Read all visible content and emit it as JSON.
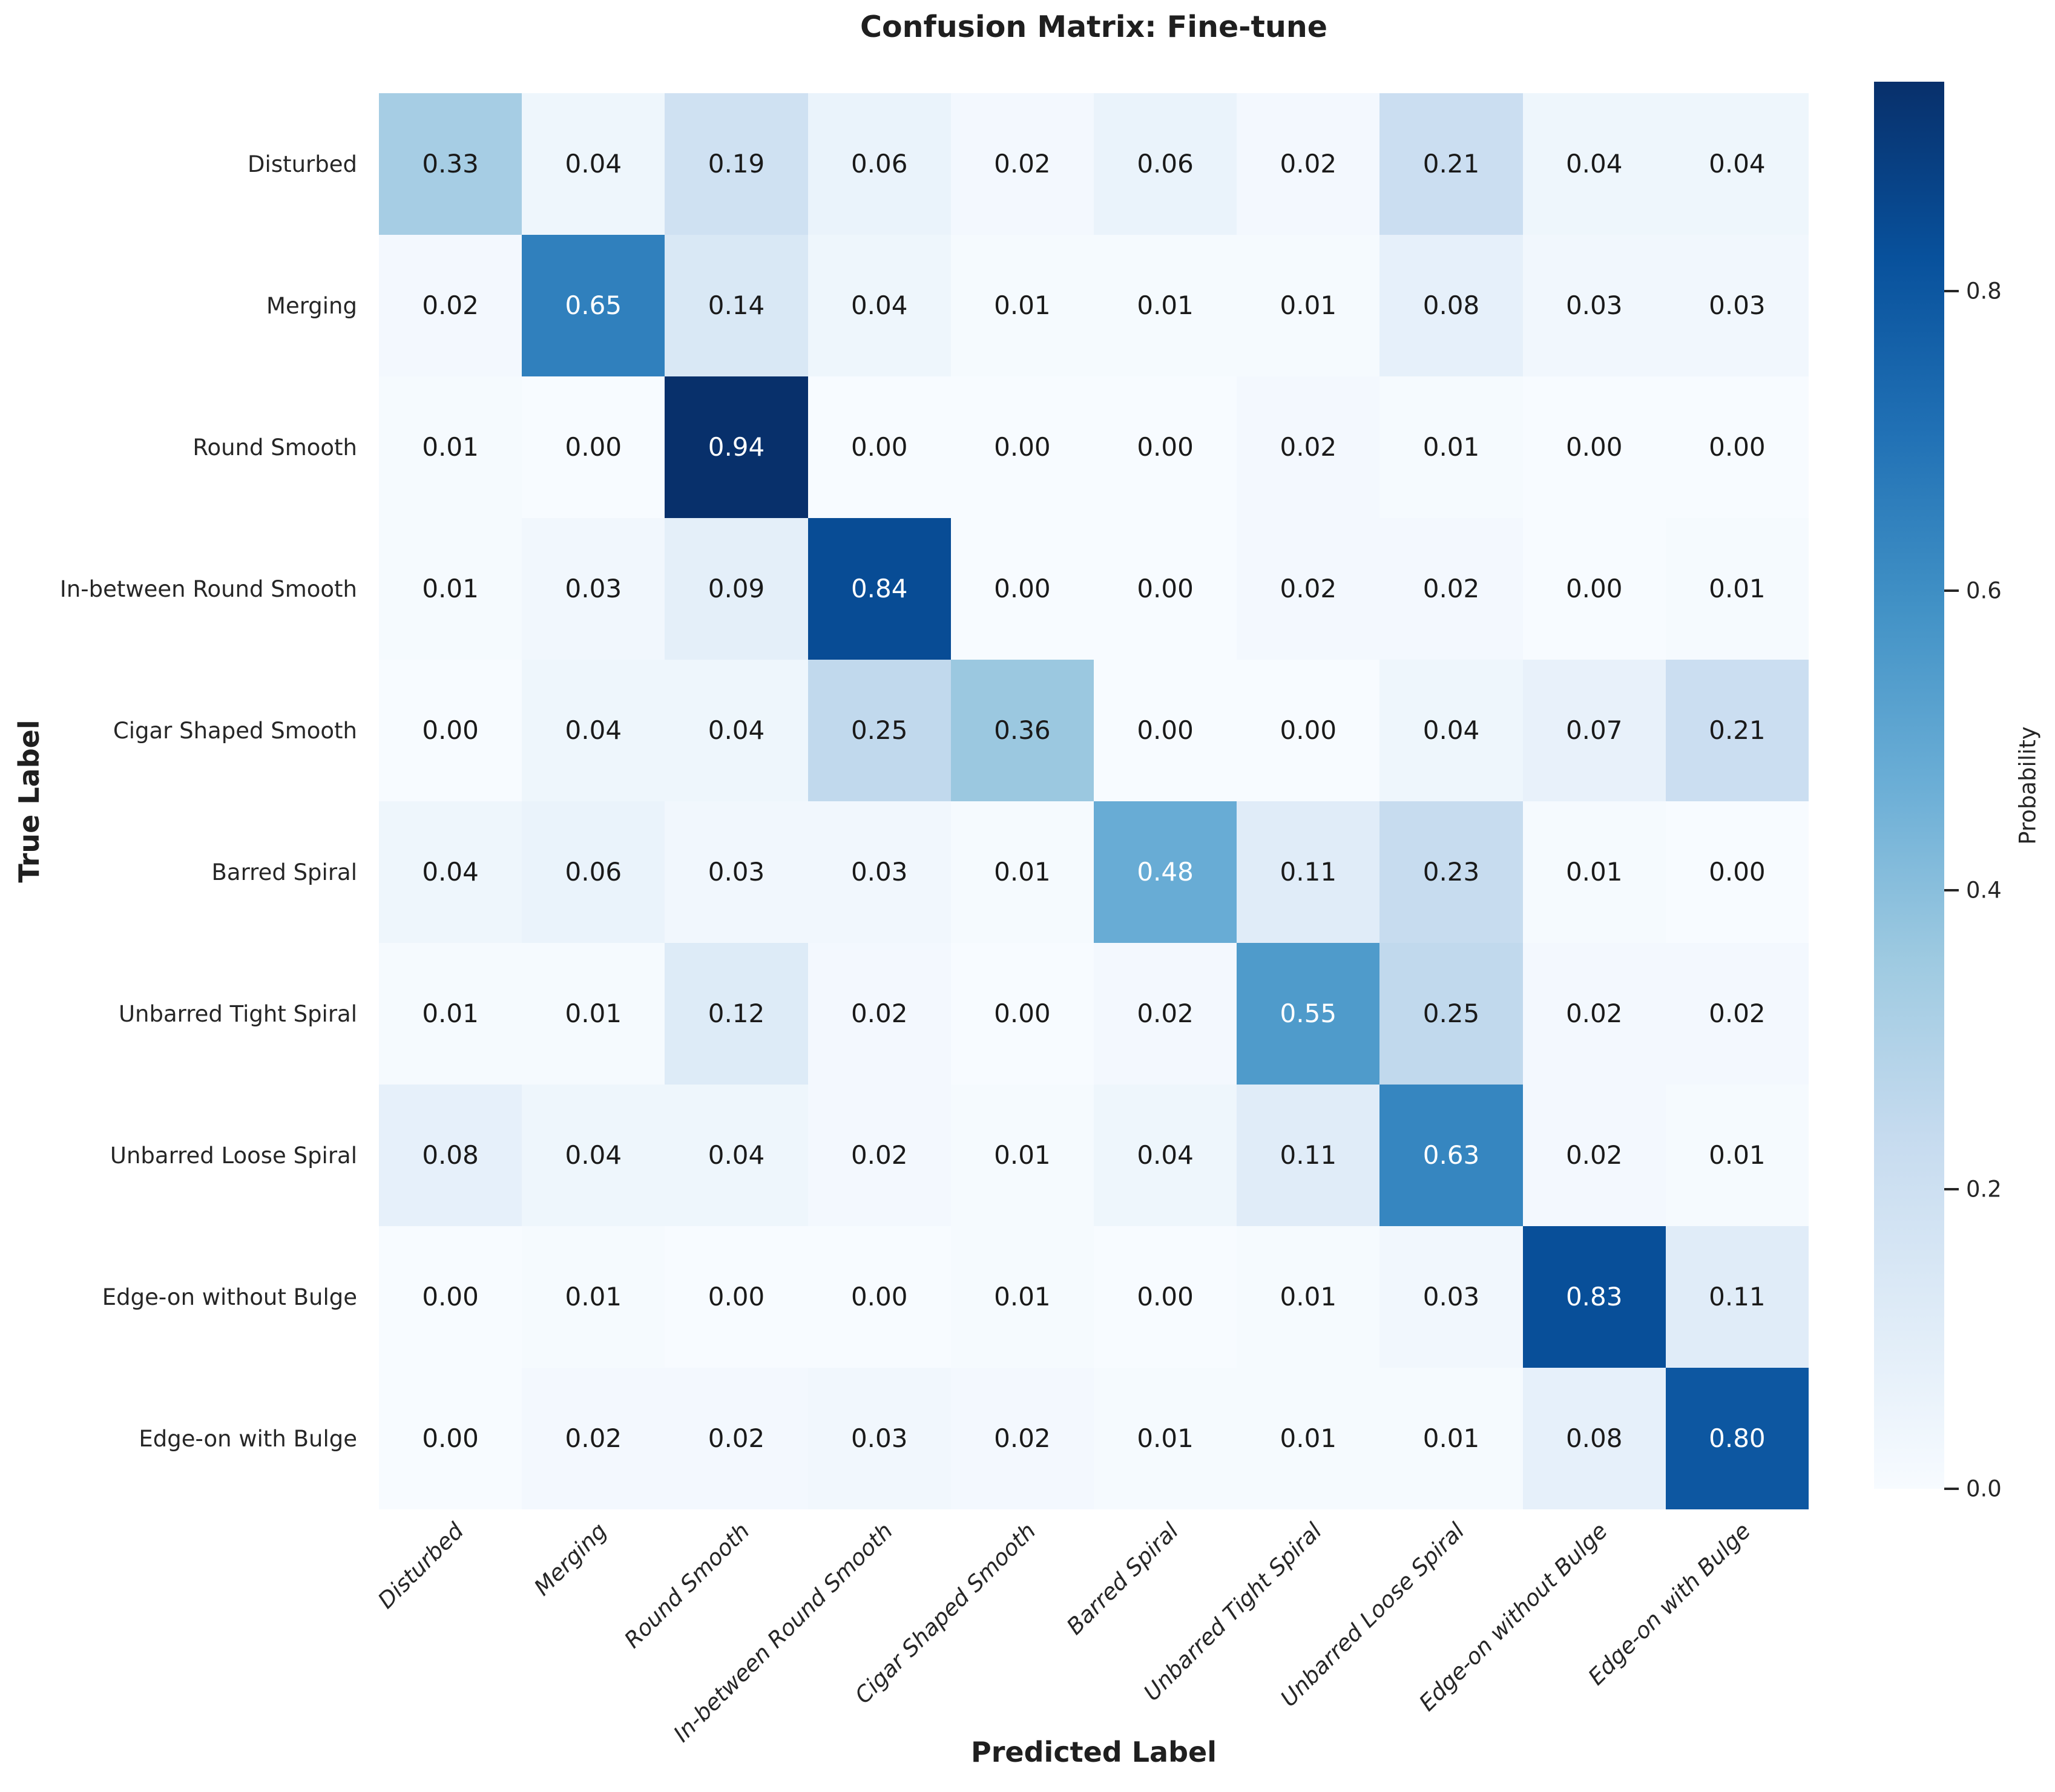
{
  "chart_data": {
    "type": "heatmap",
    "title": "Confusion Matrix: Fine-tune",
    "xlabel": "Predicted Label",
    "ylabel": "True Label",
    "categories": [
      "Disturbed",
      "Merging",
      "Round Smooth",
      "In-between Round Smooth",
      "Cigar Shaped Smooth",
      "Barred Spiral",
      "Unbarred Tight Spiral",
      "Unbarred Loose Spiral",
      "Edge-on without Bulge",
      "Edge-on with Bulge"
    ],
    "rows": [
      [
        0.33,
        0.04,
        0.19,
        0.06,
        0.02,
        0.06,
        0.02,
        0.21,
        0.04,
        0.04
      ],
      [
        0.02,
        0.65,
        0.14,
        0.04,
        0.01,
        0.01,
        0.01,
        0.08,
        0.03,
        0.03
      ],
      [
        0.01,
        0.0,
        0.94,
        0.0,
        0.0,
        0.0,
        0.02,
        0.01,
        0.0,
        0.0
      ],
      [
        0.01,
        0.03,
        0.09,
        0.84,
        0.0,
        0.0,
        0.02,
        0.02,
        0.0,
        0.01
      ],
      [
        0.0,
        0.04,
        0.04,
        0.25,
        0.36,
        0.0,
        0.0,
        0.04,
        0.07,
        0.21
      ],
      [
        0.04,
        0.06,
        0.03,
        0.03,
        0.01,
        0.48,
        0.11,
        0.23,
        0.01,
        0.0
      ],
      [
        0.01,
        0.01,
        0.12,
        0.02,
        0.0,
        0.02,
        0.55,
        0.25,
        0.02,
        0.02
      ],
      [
        0.08,
        0.04,
        0.04,
        0.02,
        0.01,
        0.04,
        0.11,
        0.63,
        0.02,
        0.01
      ],
      [
        0.0,
        0.01,
        0.0,
        0.0,
        0.01,
        0.0,
        0.01,
        0.03,
        0.83,
        0.11
      ],
      [
        0.0,
        0.02,
        0.02,
        0.03,
        0.02,
        0.01,
        0.01,
        0.01,
        0.08,
        0.8
      ]
    ],
    "value_format": "0.00",
    "vmin": 0.0,
    "vmax": 0.94,
    "colormap": "Blues",
    "colormap_stops": [
      "#f7fbff",
      "#deebf7",
      "#c6dbef",
      "#9ecae1",
      "#6baed6",
      "#4292c6",
      "#2171b5",
      "#08519c",
      "#08306b"
    ],
    "annotation_color_dark": "#1a1a1a",
    "annotation_color_light": "#ffffff",
    "colorbar_label": "Probability",
    "colorbar_ticks": [
      0.0,
      0.2,
      0.4,
      0.6,
      0.8
    ],
    "x_tick_rotation": 45,
    "x_tick_style": "italic",
    "grid": "off",
    "legend_position": "none"
  }
}
